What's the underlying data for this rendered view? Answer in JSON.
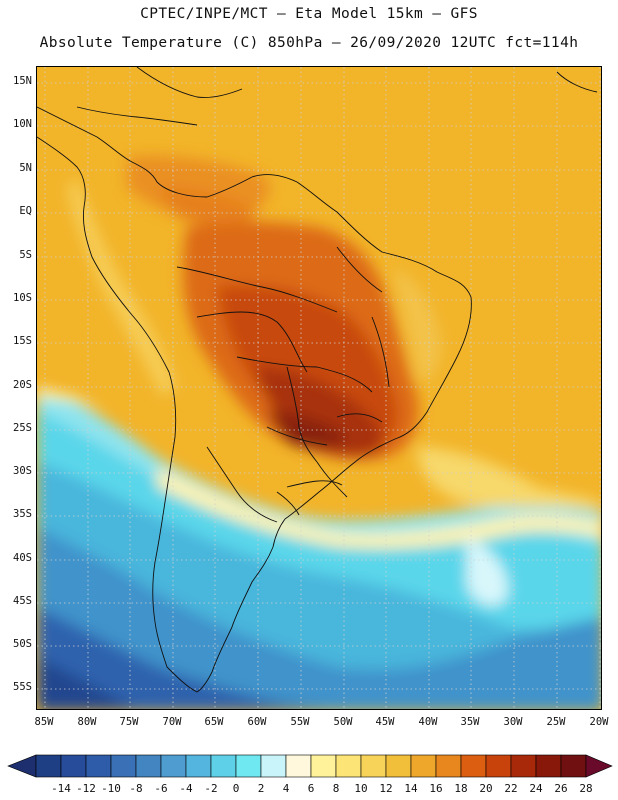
{
  "header": {
    "line1": "CPTEC/INPE/MCT –  Eta Model 15km – GFS",
    "line2": "Absolute Temperature (C) 850hPa – 26/09/2020 12UTC fct=114h"
  },
  "map": {
    "lat_labels": [
      "15N",
      "10N",
      "5N",
      "EQ",
      "5S",
      "10S",
      "15S",
      "20S",
      "25S",
      "30S",
      "35S",
      "40S",
      "45S",
      "50S",
      "55S"
    ],
    "lon_labels": [
      "85W",
      "80W",
      "75W",
      "70W",
      "65W",
      "60W",
      "55W",
      "50W",
      "45W",
      "40W",
      "35W",
      "30W",
      "25W",
      "20W"
    ]
  },
  "colorbar": {
    "labels": [
      "-14",
      "-12",
      "-10",
      "-8",
      "-6",
      "-4",
      "-2",
      "0",
      "2",
      "4",
      "6",
      "8",
      "10",
      "12",
      "14",
      "16",
      "18",
      "20",
      "22",
      "24",
      "26",
      "28"
    ],
    "colors": [
      "#1f3f85",
      "#274c99",
      "#2e5ca9",
      "#3a70b5",
      "#4385c0",
      "#4e9cd0",
      "#54b6de",
      "#5ed0e8",
      "#70e8f2",
      "#c8f4fa",
      "#fff8dc",
      "#fff29a",
      "#fce576",
      "#f8d35a",
      "#f2bf3a",
      "#eea72a",
      "#e8871e",
      "#dc5e10",
      "#c8420c",
      "#a8280a",
      "#88180a",
      "#701010"
    ]
  }
}
